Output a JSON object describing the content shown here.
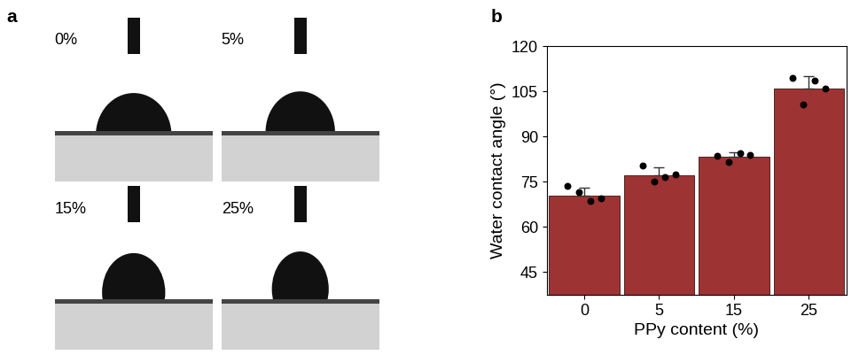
{
  "panel_labels": [
    "a",
    "b"
  ],
  "photo_labels": [
    "0%",
    "5%",
    "15%",
    "25%"
  ],
  "chart_data": {
    "type": "bar",
    "categories": [
      "0",
      "5",
      "15",
      "25"
    ],
    "values": [
      70.5,
      77.2,
      83.3,
      106.0
    ],
    "errors": [
      2.5,
      2.5,
      1.5,
      4.0
    ],
    "points": [
      [
        73.5,
        71.5,
        68.5,
        69.5
      ],
      [
        80.5,
        75.0,
        76.5,
        77.5
      ],
      [
        83.5,
        81.5,
        84.5,
        84.0
      ],
      [
        109.5,
        100.5,
        108.5,
        106.0
      ]
    ],
    "color": "#9e3333",
    "x_label": "PPy content (%)",
    "y_label": "Water contact angle (°)",
    "ylim": [
      37.5,
      120
    ],
    "yticks": [
      45,
      60,
      75,
      90,
      105,
      120
    ]
  }
}
